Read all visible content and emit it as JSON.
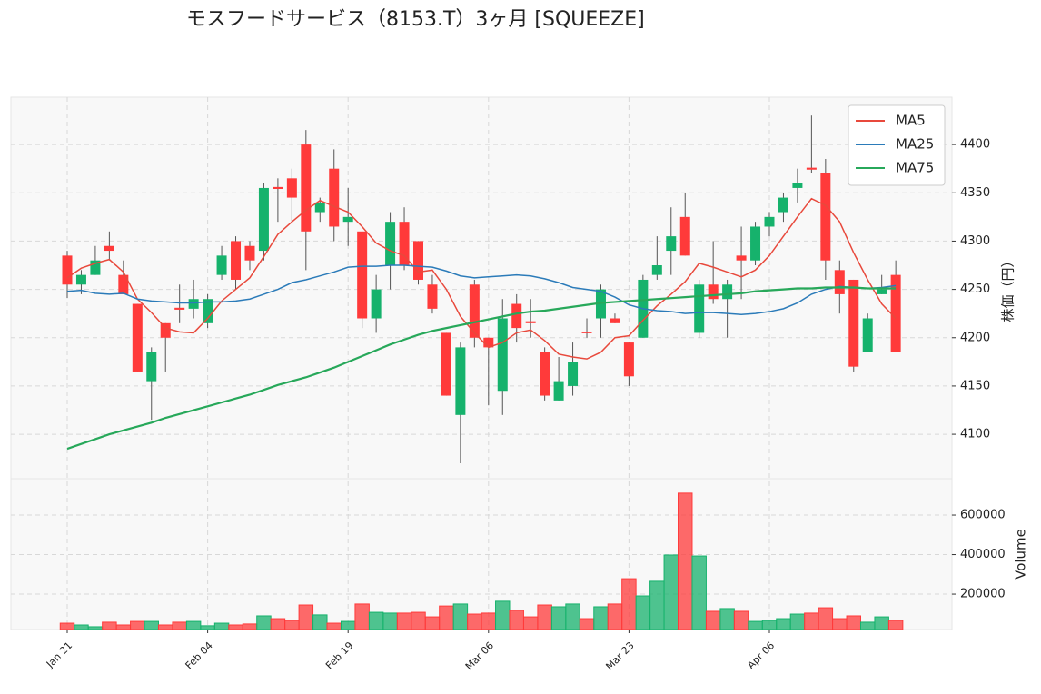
{
  "chart_data": {
    "type": "candlestick",
    "title": "モスフードサービス（8153.T）3ヶ月 [SQUEEZE]",
    "categories": [
      "Jan 21",
      null,
      null,
      null,
      null,
      null,
      null,
      null,
      null,
      null,
      "Feb 04",
      null,
      null,
      null,
      null,
      null,
      null,
      null,
      null,
      null,
      "Feb 19",
      null,
      null,
      null,
      null,
      null,
      null,
      null,
      null,
      null,
      "Mar 06",
      null,
      null,
      null,
      null,
      null,
      null,
      null,
      null,
      null,
      "Mar 23",
      null,
      null,
      null,
      null,
      null,
      null,
      null,
      null,
      null,
      "Apr 06",
      null,
      null,
      null,
      null,
      null,
      null,
      null,
      null,
      null
    ],
    "open": [
      4285,
      4255,
      4265,
      4295,
      4265,
      4235,
      4155,
      4215,
      4231,
      4230,
      4215,
      4265,
      4300,
      4295,
      4290,
      4356,
      4365,
      4400,
      4330,
      4375,
      4320,
      4310,
      4220,
      4275,
      4320,
      4300,
      4255,
      4205,
      4120,
      4255,
      4200,
      4145,
      4235,
      4217,
      4185,
      4135,
      4150,
      4206,
      4220,
      4220,
      4195,
      4200,
      4265,
      4290,
      4325,
      4205,
      4255,
      4240,
      4285,
      4280,
      4315,
      4330,
      4355,
      4376,
      4370,
      4270,
      4260,
      4185,
      4245,
      4265
    ],
    "high": [
      4290,
      4270,
      4295,
      4310,
      4280,
      4235,
      4190,
      4215,
      4255,
      4260,
      4245,
      4295,
      4305,
      4300,
      4360,
      4365,
      4375,
      4415,
      4345,
      4395,
      4355,
      4310,
      4265,
      4330,
      4335,
      4300,
      4265,
      4205,
      4195,
      4260,
      4200,
      4240,
      4245,
      4240,
      4190,
      4180,
      4195,
      4220,
      4255,
      4225,
      4195,
      4265,
      4305,
      4335,
      4350,
      4260,
      4300,
      4260,
      4315,
      4320,
      4330,
      4350,
      4375,
      4430,
      4385,
      4280,
      4260,
      4225,
      4265,
      4280
    ],
    "low": [
      4241,
      4245,
      4265,
      4280,
      4245,
      4165,
      4115,
      4165,
      4215,
      4220,
      4210,
      4260,
      4250,
      4270,
      4280,
      4320,
      4320,
      4270,
      4320,
      4300,
      4295,
      4210,
      4205,
      4250,
      4270,
      4255,
      4225,
      4140,
      4070,
      4190,
      4130,
      4120,
      4195,
      4200,
      4135,
      4135,
      4140,
      4200,
      4200,
      4215,
      4150,
      4200,
      4260,
      4265,
      4285,
      4200,
      4235,
      4200,
      4240,
      4275,
      4305,
      4320,
      4340,
      4370,
      4260,
      4225,
      4165,
      4185,
      4245,
      4185
    ],
    "close": [
      4255,
      4265,
      4280,
      4290,
      4245,
      4165,
      4185,
      4200,
      4229,
      4240,
      4240,
      4285,
      4260,
      4280,
      4355,
      4354,
      4345,
      4310,
      4340,
      4315,
      4325,
      4220,
      4250,
      4320,
      4275,
      4260,
      4230,
      4140,
      4190,
      4200,
      4190,
      4220,
      4210,
      4215,
      4140,
      4155,
      4175,
      4205,
      4250,
      4215,
      4160,
      4260,
      4275,
      4305,
      4285,
      4255,
      4240,
      4255,
      4280,
      4315,
      4325,
      4345,
      4360,
      4374,
      4280,
      4245,
      4170,
      4220,
      4250,
      4185
    ],
    "up_color": "#16b26c",
    "down_color": "#ff3a3a",
    "ylim": [
      4054,
      4449
    ],
    "yticks": [
      4100,
      4150,
      4200,
      4250,
      4300,
      4350,
      4400
    ],
    "ylabel": "株価（円）",
    "grid": true,
    "legend": "upper right",
    "series": [
      {
        "name": "MA5",
        "color": "#e8493c",
        "values": [
          4262,
          4272,
          4277,
          4281,
          4268,
          4240,
          4226,
          4210,
          4206,
          4205,
          4220,
          4238,
          4250,
          4262,
          4284,
          4307,
          4320,
          4332,
          4342,
          4336,
          4330,
          4315,
          4298,
          4290,
          4285,
          4268,
          4270,
          4250,
          4222,
          4205,
          4190,
          4195,
          4205,
          4208,
          4197,
          4183,
          4180,
          4178,
          4185,
          4200,
          4202,
          4218,
          4233,
          4245,
          4258,
          4277,
          4273,
          4268,
          4263,
          4270,
          4285,
          4305,
          4325,
          4344,
          4337,
          4320,
          4288,
          4260,
          4235,
          4220
        ]
      },
      {
        "name": "MA25",
        "color": "#2b7bb9",
        "values": [
          4248,
          4249,
          4246,
          4245,
          4246,
          4240,
          4238,
          4237,
          4236,
          4236,
          4237,
          4237,
          4238,
          4240,
          4245,
          4250,
          4257,
          4260,
          4264,
          4268,
          4273,
          4274,
          4274,
          4275,
          4275,
          4274,
          4273,
          4269,
          4264,
          4262,
          4263,
          4264,
          4265,
          4264,
          4261,
          4257,
          4252,
          4250,
          4248,
          4242,
          4234,
          4230,
          4228,
          4227,
          4225,
          4226,
          4226,
          4225,
          4224,
          4225,
          4227,
          4230,
          4236,
          4245,
          4250,
          4253,
          4252,
          4251,
          4252,
          4254
        ]
      },
      {
        "name": "MA75",
        "color": "#27a85a",
        "values": [
          4085,
          4090,
          4095,
          4100,
          4104,
          4108,
          4112,
          4117,
          4121,
          4125,
          4129,
          4133,
          4137,
          4141,
          4146,
          4151,
          4155,
          4159,
          4164,
          4169,
          4175,
          4181,
          4187,
          4193,
          4198,
          4203,
          4207,
          4210,
          4213,
          4216,
          4219,
          4222,
          4225,
          4227,
          4228,
          4230,
          4232,
          4234,
          4236,
          4237,
          4238,
          4239,
          4240,
          4241,
          4242,
          4243,
          4244,
          4245,
          4246,
          4248,
          4249,
          4250,
          4251,
          4251,
          4252,
          4252,
          4252,
          4251,
          4251,
          4251
        ]
      }
    ],
    "volume": {
      "ylabel": "Volume",
      "ylim": [
        21000,
        784000
      ],
      "yticks": [
        200000,
        400000,
        600000
      ],
      "values": [
        53000,
        44000,
        35000,
        58000,
        44000,
        62000,
        62000,
        44000,
        58000,
        62000,
        40000,
        53000,
        44000,
        49000,
        90000,
        76000,
        67000,
        145000,
        95000,
        53000,
        62000,
        150000,
        108000,
        104000,
        104000,
        108000,
        85000,
        140000,
        150000,
        99000,
        104000,
        164000,
        118000,
        85000,
        145000,
        136000,
        150000,
        76000,
        136000,
        150000,
        278000,
        191000,
        265000,
        398000,
        711000,
        393000,
        113000,
        127000,
        113000,
        62000,
        67000,
        76000,
        99000,
        104000,
        131000,
        76000,
        90000,
        58000,
        85000,
        67000
      ]
    }
  }
}
